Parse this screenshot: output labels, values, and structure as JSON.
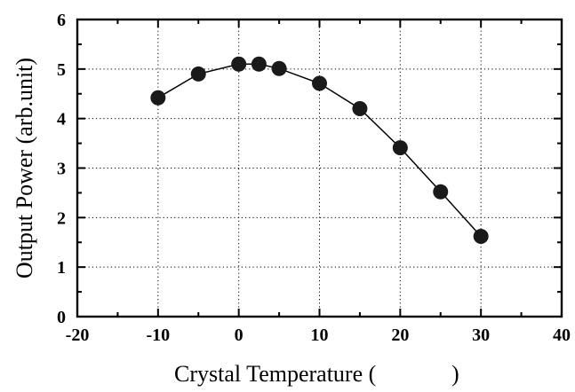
{
  "chart_data": {
    "type": "line",
    "title": "",
    "xlabel": "Crystal Temperature (",
    "xlabel_close": ")",
    "ylabel": "Output Power (arb.unit)",
    "xlim": [
      -20,
      40
    ],
    "ylim": [
      0,
      6
    ],
    "xticks": [
      "-20",
      "-10",
      "0",
      "10",
      "20",
      "30",
      "40"
    ],
    "yticks": [
      "0",
      "1",
      "2",
      "3",
      "4",
      "5",
      "6"
    ],
    "grid": true,
    "series": [
      {
        "x": [
          -10,
          -5,
          0,
          2.5,
          5,
          10,
          15,
          20,
          25,
          30
        ],
        "y": [
          4.42,
          4.9,
          5.1,
          5.1,
          5.01,
          4.71,
          4.2,
          3.41,
          2.52,
          1.62
        ]
      }
    ],
    "colors": {
      "marker": "#1a1a1a",
      "line": "#000000",
      "grid": "#000000"
    }
  }
}
